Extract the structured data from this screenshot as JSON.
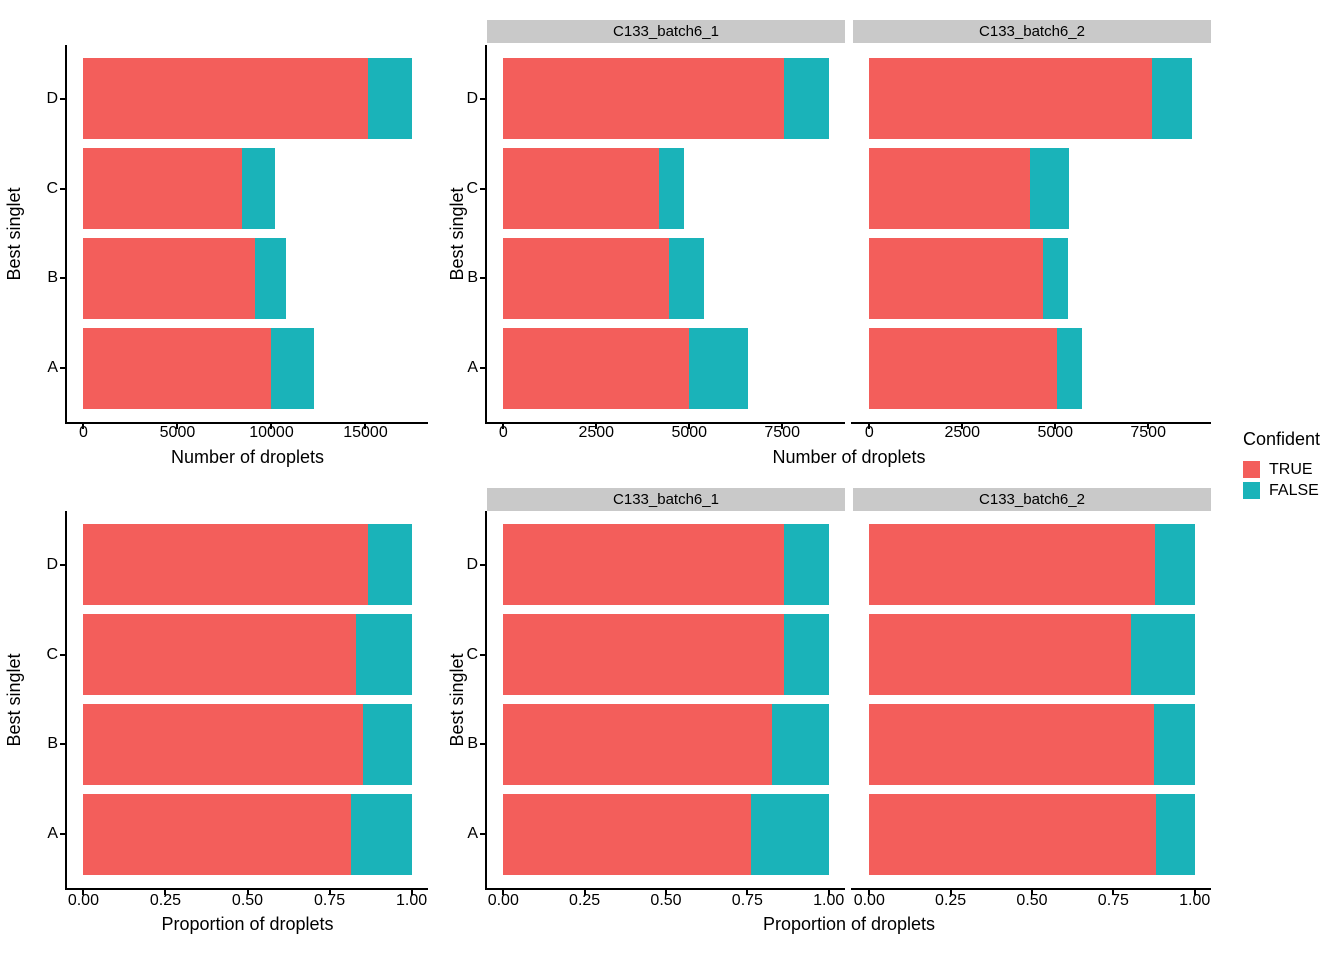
{
  "figure": {
    "legend": {
      "title": "Confident",
      "entries": [
        {
          "label": "TRUE",
          "color": "#F35E5B"
        },
        {
          "label": "FALSE",
          "color": "#1AB3B9"
        }
      ]
    },
    "colors": {
      "true": "#F35E5B",
      "false": "#1AB3B9",
      "strip": "#C9C9C9",
      "axis": "#000000"
    }
  },
  "chart_data": [
    {
      "id": "counts-overall",
      "type": "bar",
      "orientation": "horizontal",
      "stacked": true,
      "xlabel": "Number of droplets",
      "ylabel": "Best singlet",
      "categories_top_to_bottom": [
        "D",
        "C",
        "B",
        "A"
      ],
      "xlim": [
        -875,
        18325
      ],
      "xticks": [
        {
          "v": 0,
          "label": "0"
        },
        {
          "v": 5000,
          "label": "5000"
        },
        {
          "v": 10000,
          "label": "10000"
        },
        {
          "v": 15000,
          "label": "15000"
        }
      ],
      "series_names": [
        "TRUE",
        "FALSE"
      ],
      "panels": [
        {
          "strip": null,
          "bars": [
            {
              "category": "D",
              "TRUE": 15150,
              "FALSE": 2300
            },
            {
              "category": "C",
              "TRUE": 8450,
              "FALSE": 1730
            },
            {
              "category": "B",
              "TRUE": 9150,
              "FALSE": 1600
            },
            {
              "category": "A",
              "TRUE": 10000,
              "FALSE": 2270
            }
          ]
        }
      ]
    },
    {
      "id": "counts-by-batch",
      "type": "bar",
      "orientation": "horizontal",
      "stacked": true,
      "xlabel": "Number of droplets",
      "ylabel": "Best singlet",
      "categories_top_to_bottom": [
        "D",
        "C",
        "B",
        "A"
      ],
      "xlim": [
        -440,
        9190
      ],
      "xticks": [
        {
          "v": 0,
          "label": "0"
        },
        {
          "v": 2500,
          "label": "2500"
        },
        {
          "v": 5000,
          "label": "5000"
        },
        {
          "v": 7500,
          "label": "7500"
        }
      ],
      "series_names": [
        "TRUE",
        "FALSE"
      ],
      "panels": [
        {
          "strip": "C133_batch6_1",
          "bars": [
            {
              "category": "D",
              "TRUE": 7560,
              "FALSE": 1190
            },
            {
              "category": "C",
              "TRUE": 4190,
              "FALSE": 660
            },
            {
              "category": "B",
              "TRUE": 4460,
              "FALSE": 930
            },
            {
              "category": "A",
              "TRUE": 5000,
              "FALSE": 1570
            }
          ]
        },
        {
          "strip": "C133_batch6_2",
          "bars": [
            {
              "category": "D",
              "TRUE": 7600,
              "FALSE": 1070
            },
            {
              "category": "C",
              "TRUE": 4310,
              "FALSE": 1050
            },
            {
              "category": "B",
              "TRUE": 4660,
              "FALSE": 670
            },
            {
              "category": "A",
              "TRUE": 5050,
              "FALSE": 680
            }
          ]
        }
      ]
    },
    {
      "id": "proportion-overall",
      "type": "bar",
      "orientation": "horizontal",
      "stacked": true,
      "xlabel": "Proportion of droplets",
      "ylabel": "Best singlet",
      "categories_top_to_bottom": [
        "D",
        "C",
        "B",
        "A"
      ],
      "xlim": [
        -0.05,
        1.05
      ],
      "xticks": [
        {
          "v": 0,
          "label": "0.00"
        },
        {
          "v": 0.25,
          "label": "0.25"
        },
        {
          "v": 0.5,
          "label": "0.50"
        },
        {
          "v": 0.75,
          "label": "0.75"
        },
        {
          "v": 1,
          "label": "1.00"
        }
      ],
      "series_names": [
        "TRUE",
        "FALSE"
      ],
      "panels": [
        {
          "strip": null,
          "bars": [
            {
              "category": "D",
              "TRUE": 0.868,
              "FALSE": 0.132
            },
            {
              "category": "C",
              "TRUE": 0.83,
              "FALSE": 0.17
            },
            {
              "category": "B",
              "TRUE": 0.851,
              "FALSE": 0.149
            },
            {
              "category": "A",
              "TRUE": 0.815,
              "FALSE": 0.185
            }
          ]
        }
      ]
    },
    {
      "id": "proportion-by-batch",
      "type": "bar",
      "orientation": "horizontal",
      "stacked": true,
      "xlabel": "Proportion of droplets",
      "ylabel": "Best singlet",
      "categories_top_to_bottom": [
        "D",
        "C",
        "B",
        "A"
      ],
      "xlim": [
        -0.05,
        1.05
      ],
      "xticks": [
        {
          "v": 0,
          "label": "0.00"
        },
        {
          "v": 0.25,
          "label": "0.25"
        },
        {
          "v": 0.5,
          "label": "0.50"
        },
        {
          "v": 0.75,
          "label": "0.75"
        },
        {
          "v": 1,
          "label": "1.00"
        }
      ],
      "series_names": [
        "TRUE",
        "FALSE"
      ],
      "panels": [
        {
          "strip": "C133_batch6_1",
          "bars": [
            {
              "category": "D",
              "TRUE": 0.864,
              "FALSE": 0.136
            },
            {
              "category": "C",
              "TRUE": 0.864,
              "FALSE": 0.136
            },
            {
              "category": "B",
              "TRUE": 0.827,
              "FALSE": 0.173
            },
            {
              "category": "A",
              "TRUE": 0.761,
              "FALSE": 0.239
            }
          ]
        },
        {
          "strip": "C133_batch6_2",
          "bars": [
            {
              "category": "D",
              "TRUE": 0.877,
              "FALSE": 0.123
            },
            {
              "category": "C",
              "TRUE": 0.804,
              "FALSE": 0.196
            },
            {
              "category": "B",
              "TRUE": 0.874,
              "FALSE": 0.126
            },
            {
              "category": "A",
              "TRUE": 0.881,
              "FALSE": 0.119
            }
          ]
        }
      ]
    }
  ]
}
